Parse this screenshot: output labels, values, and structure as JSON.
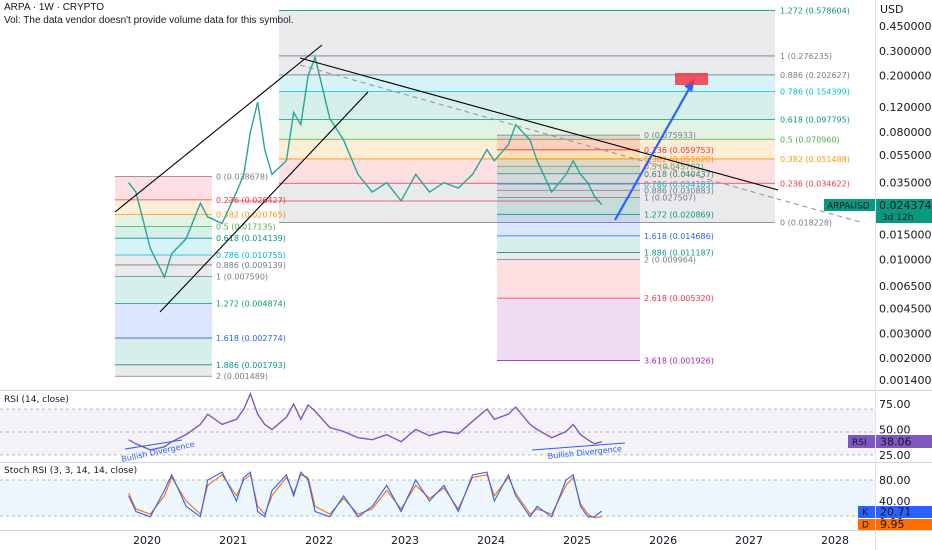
{
  "header": {
    "title": "ARPA · 1W · CRYPTO",
    "vol_note": "Vol: The data vendor doesn't provide volume data for this symbol."
  },
  "price_axis": {
    "unit_label": "USD",
    "ticks": [
      "0.450000",
      "0.300000",
      "0.200000",
      "0.120000",
      "0.080000",
      "0.055000",
      "0.035000",
      "0.015000",
      "0.010000",
      "0.006500",
      "0.004500",
      "0.003000",
      "0.002000",
      "0.001400"
    ],
    "tick_values": [
      0.45,
      0.3,
      0.2,
      0.12,
      0.08,
      0.055,
      0.035,
      0.015,
      0.01,
      0.0065,
      0.0045,
      0.003,
      0.002,
      0.0014
    ],
    "symbol_badge": "ARPAUSD",
    "last_price": "0.024374",
    "countdown": "3d 12h"
  },
  "time_axis": {
    "labels": [
      "2020",
      "2021",
      "2022",
      "2023",
      "2024",
      "2025",
      "2026",
      "2027",
      "2028"
    ]
  },
  "fib_sets": [
    {
      "levels": [
        {
          "text": "0 (0.038678)",
          "v": 0.038678,
          "color": "#787b86"
        },
        {
          "text": "0.236 (0.026427)",
          "v": 0.026427,
          "color": "#f23645"
        },
        {
          "text": "0.382 (0.020765)",
          "v": 0.020765,
          "color": "#ff9800"
        },
        {
          "text": "0.5 (0.017135)",
          "v": 0.017135,
          "color": "#4caf50"
        },
        {
          "text": "0.618 (0.014139)",
          "v": 0.014139,
          "color": "#089981"
        },
        {
          "text": "0.786 (0.010755)",
          "v": 0.010755,
          "color": "#00bcd4"
        },
        {
          "text": "0.886 (0.009139)",
          "v": 0.009139,
          "color": "#787b86"
        },
        {
          "text": "1 (0.007590)",
          "v": 0.00759,
          "color": "#787b86"
        },
        {
          "text": "1.272 (0.004874)",
          "v": 0.004874,
          "color": "#089981"
        },
        {
          "text": "1.618 (0.002774)",
          "v": 0.002774,
          "color": "#2962ff"
        },
        {
          "text": "1.886 (0.001793)",
          "v": 0.001793,
          "color": "#089981"
        },
        {
          "text": "2 (0.001489)",
          "v": 0.001489,
          "color": "#787b86"
        }
      ]
    },
    {
      "levels": [
        {
          "text": "1.272 (0.578604)",
          "v": 0.578604,
          "color": "#089981"
        },
        {
          "text": "1 (0.276235)",
          "v": 0.276235,
          "color": "#787b86"
        },
        {
          "text": "0.886 (0.202627)",
          "v": 0.202627,
          "color": "#787b86"
        },
        {
          "text": "0.786 (0.154399)",
          "v": 0.154399,
          "color": "#00bcd4"
        },
        {
          "text": "0.618 (0.097795)",
          "v": 0.097795,
          "color": "#089981"
        },
        {
          "text": "0.5 (0.070960)",
          "v": 0.07096,
          "color": "#4caf50"
        },
        {
          "text": "0.382 (0.051488)",
          "v": 0.051488,
          "color": "#ff9800"
        },
        {
          "text": "0.236 (0.034622)",
          "v": 0.034622,
          "color": "#f23645"
        },
        {
          "text": "0 (0.018228)",
          "v": 0.018228,
          "color": "#787b86"
        }
      ]
    },
    {
      "levels": [
        {
          "text": "0 (0.075933)",
          "v": 0.075933,
          "color": "#787b86"
        },
        {
          "text": "0.236 (0.059753)",
          "v": 0.059753,
          "color": "#f23645"
        },
        {
          "text": "0.382 (0.051620)",
          "v": 0.05162,
          "color": "#ff9800"
        },
        {
          "text": "0.5 (0.045702)",
          "v": 0.045702,
          "color": "#4caf50"
        },
        {
          "text": "0.618 (0.040437)",
          "v": 0.040437,
          "color": "#089981"
        },
        {
          "text": "0.786 (0.034183)",
          "v": 0.034183,
          "color": "#00bcd4"
        },
        {
          "text": "0.886 (0.030883)",
          "v": 0.030883,
          "color": "#787b86"
        },
        {
          "text": "1 (0.027507)",
          "v": 0.027507,
          "color": "#787b86"
        },
        {
          "text": "1.272 (0.020869)",
          "v": 0.020869,
          "color": "#089981"
        },
        {
          "text": "1.618 (0.014686)",
          "v": 0.014686,
          "color": "#2962ff"
        },
        {
          "text": "1.886 (0.011187)",
          "v": 0.011187,
          "color": "#089981"
        },
        {
          "text": "2 (0.009964)",
          "v": 0.009964,
          "color": "#787b86"
        },
        {
          "text": "2.618 (0.005320)",
          "v": 0.00532,
          "color": "#f23645"
        },
        {
          "text": "3.618 (0.001926)",
          "v": 0.001926,
          "color": "#9c27b0"
        }
      ]
    }
  ],
  "rsi_panel": {
    "title": "RSI (14, close)",
    "ticks": [
      "75.00",
      "50.00",
      "25.00"
    ],
    "tick_values": [
      75,
      50,
      25
    ],
    "badge_label": "RSI",
    "badge_value": "38.06",
    "divergence_labels": [
      "Bullish Divergence",
      "Bullish Divergence"
    ]
  },
  "stoch_panel": {
    "title": "Stoch RSI (3, 3, 14, 14, close)",
    "ticks": [
      "80.00",
      "40.00",
      "0.00"
    ],
    "tick_values": [
      80,
      40,
      0
    ],
    "k_label": "K",
    "k_value": "20.71",
    "d_label": "D",
    "d_value": "9.95"
  },
  "chart_data": {
    "type": "line",
    "title": "ARPA · 1W · CRYPTO",
    "y_scale": "log",
    "ylim": [
      0.0012,
      0.6
    ],
    "x": [
      "2019-10",
      "2019-11",
      "2020-01",
      "2020-03",
      "2020-04",
      "2020-06",
      "2020-08",
      "2020-09",
      "2020-11",
      "2021-01",
      "2021-02",
      "2021-03",
      "2021-04",
      "2021-05",
      "2021-06",
      "2021-08",
      "2021-09",
      "2021-10",
      "2021-11",
      "2021-12",
      "2022-02",
      "2022-04",
      "2022-06",
      "2022-08",
      "2022-10",
      "2022-12",
      "2023-02",
      "2023-04",
      "2023-06",
      "2023-08",
      "2023-10",
      "2023-12",
      "2024-01",
      "2024-03",
      "2024-04",
      "2024-06",
      "2024-07",
      "2024-09",
      "2024-11",
      "2024-12",
      "2025-01",
      "2025-02",
      "2025-03",
      "2025-04"
    ],
    "series": [
      {
        "values": [
          0.035,
          0.03,
          0.012,
          0.0075,
          0.011,
          0.014,
          0.025,
          0.02,
          0.018,
          0.03,
          0.04,
          0.08,
          0.13,
          0.06,
          0.04,
          0.05,
          0.11,
          0.09,
          0.2,
          0.27,
          0.1,
          0.07,
          0.04,
          0.03,
          0.035,
          0.026,
          0.04,
          0.03,
          0.035,
          0.032,
          0.04,
          0.06,
          0.05,
          0.065,
          0.09,
          0.07,
          0.05,
          0.03,
          0.04,
          0.05,
          0.04,
          0.035,
          0.028,
          0.0244
        ]
      },
      {
        "name": "RSI",
        "values": [
          40,
          36,
          30,
          33,
          38,
          45,
          55,
          65,
          55,
          60,
          70,
          85,
          65,
          55,
          50,
          62,
          75,
          60,
          74,
          68,
          52,
          48,
          42,
          40,
          45,
          38,
          50,
          44,
          48,
          46,
          58,
          70,
          60,
          65,
          72,
          55,
          50,
          42,
          48,
          55,
          45,
          40,
          36,
          38
        ]
      },
      {
        "name": "K",
        "values": [
          50,
          20,
          10,
          60,
          90,
          30,
          10,
          80,
          95,
          40,
          85,
          95,
          20,
          10,
          60,
          90,
          50,
          95,
          80,
          20,
          10,
          50,
          10,
          30,
          70,
          20,
          80,
          40,
          70,
          20,
          90,
          95,
          40,
          90,
          50,
          10,
          30,
          10,
          80,
          90,
          30,
          10,
          10,
          20.71
        ]
      },
      {
        "name": "D",
        "values": [
          55,
          25,
          15,
          50,
          85,
          40,
          15,
          70,
          90,
          50,
          80,
          90,
          30,
          15,
          50,
          85,
          55,
          90,
          85,
          30,
          15,
          45,
          15,
          25,
          60,
          25,
          70,
          45,
          65,
          25,
          85,
          90,
          50,
          85,
          55,
          15,
          25,
          15,
          70,
          85,
          35,
          15,
          8,
          9.95
        ]
      }
    ]
  },
  "colors": {
    "price_line": "#26a69a",
    "rsi_line": "#7e57c2",
    "stoch_k": "#2962ff",
    "stoch_d": "#ff6d00",
    "trend": "#000000",
    "projection": "#2962ff",
    "target": "#f23645"
  },
  "icons": {
    "projection_arrow": "arrow-up-right-icon",
    "target_box": "target-zone-icon"
  }
}
